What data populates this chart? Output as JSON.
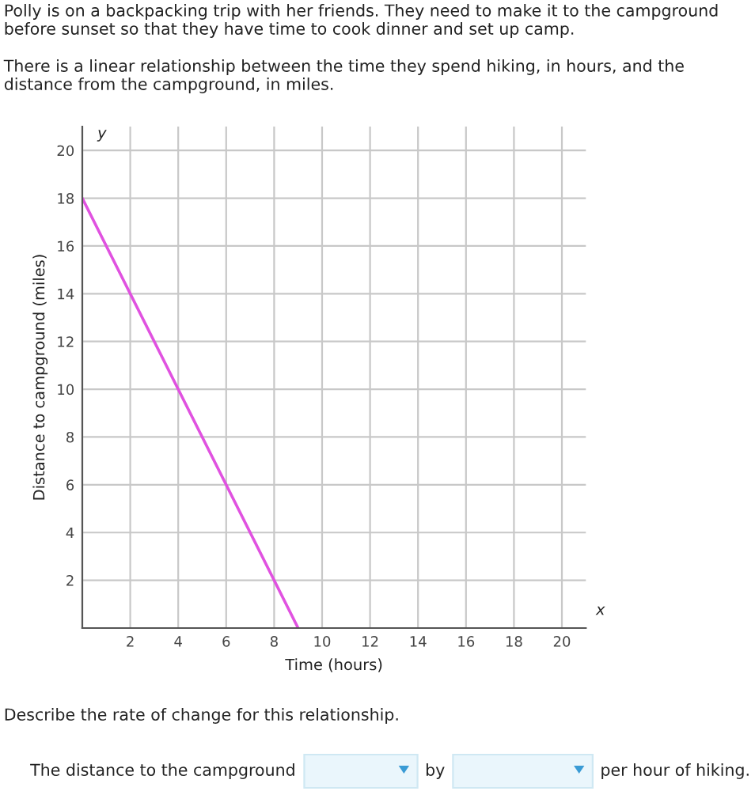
{
  "chart_data": {
    "type": "line",
    "title": "Polly is on a backpacking trip with her friends. They need to make it to the campground before sunset so that they have time to cook dinner and set up camp.",
    "subtitle": "There is a linear relationship between the time they spend hiking, in hours, and the distance from the campground, in miles.",
    "xlabel": "Time (hours)",
    "ylabel": "Distance to campground (miles)",
    "x": [
      0,
      9
    ],
    "series": [
      {
        "color": "#e052e0",
        "values": [
          18,
          0
        ]
      }
    ],
    "xlim": [
      0,
      21
    ],
    "ylim": [
      0,
      21
    ],
    "xticks": [
      {
        "value": 0,
        "label": null
      },
      2,
      4,
      6,
      8,
      10,
      12,
      14,
      16,
      18,
      20
    ],
    "yticks": [
      {
        "value": 0,
        "label": null
      },
      2,
      4,
      6,
      8,
      10,
      12,
      14,
      16,
      18,
      20
    ],
    "grid": true,
    "legend": false,
    "marker": "none",
    "line_style": "solid",
    "annotations": [
      "x",
      "y",
      "Describe the rate of change for this relationship.",
      "The distance to the campground",
      "by",
      "per hour of hiking."
    ]
  }
}
